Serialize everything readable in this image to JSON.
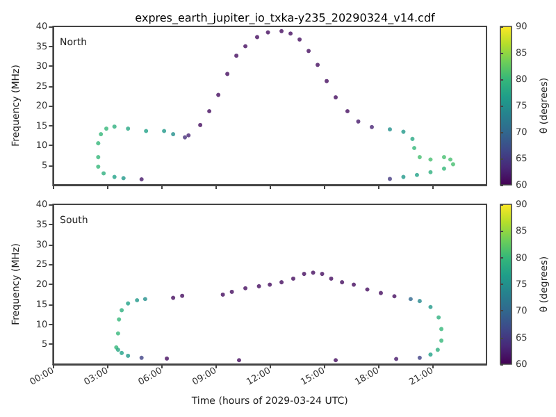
{
  "chart_data": [
    {
      "type": "scatter",
      "title": "expres_earth_jupiter_io_txka-y235_20290324_v14.cdf",
      "ylabel": "Frequency (MHz)",
      "clabel": "θ (degrees)",
      "annotations": [
        "North"
      ],
      "marker": "circle",
      "tick_labels": "y",
      "x": [
        4.9,
        3.9,
        3.4,
        2.8,
        2.5,
        2.5,
        2.5,
        2.65,
        2.95,
        3.4,
        4.15,
        5.15,
        6.15,
        6.65,
        7.3,
        7.5,
        8.15,
        8.65,
        9.15,
        9.65,
        10.15,
        10.65,
        11.3,
        11.9,
        12.65,
        13.15,
        13.65,
        14.15,
        14.65,
        15.15,
        15.65,
        16.3,
        16.9,
        17.65,
        18.65,
        19.4,
        19.9,
        20.0,
        20.3,
        20.9,
        21.65,
        22.0,
        22.15,
        21.65,
        20.9,
        20.15,
        19.4,
        18.65
      ],
      "values": [
        1.4,
        1.7,
        2.0,
        2.9,
        4.6,
        7.0,
        10.5,
        12.8,
        14.2,
        14.7,
        14.2,
        13.6,
        13.6,
        12.8,
        12.0,
        12.5,
        15.1,
        18.6,
        22.7,
        28,
        32.6,
        35,
        37.3,
        38.5,
        38.8,
        38.2,
        36.7,
        33.8,
        30.3,
        26.2,
        22.1,
        18.6,
        16,
        14.6,
        14.0,
        13.4,
        11.6,
        9.3,
        7.0,
        6.4,
        7.0,
        6.4,
        5.2,
        4.1,
        3.2,
        2.5,
        2.0,
        1.5
      ],
      "cvalues": [
        62,
        76,
        77,
        79,
        80,
        80,
        80,
        80,
        80,
        79,
        78,
        77,
        76,
        75,
        64,
        63,
        61,
        61,
        61,
        61,
        61,
        61,
        61,
        61,
        61,
        61,
        61,
        61,
        61,
        61,
        61,
        61,
        62,
        63,
        75,
        76,
        78,
        80,
        81,
        81,
        81,
        81,
        81,
        80,
        79,
        77,
        76,
        65
      ],
      "xlim": [
        0,
        24
      ],
      "xticks": [
        {
          "value": 0,
          "label": null
        },
        {
          "value": 3,
          "label": null
        },
        {
          "value": 6,
          "label": null
        },
        {
          "value": 9,
          "label": null
        },
        {
          "value": 12,
          "label": null
        },
        {
          "value": 15,
          "label": null
        },
        {
          "value": 18,
          "label": null
        },
        {
          "value": 21,
          "label": null
        }
      ],
      "ylim": [
        0,
        40
      ],
      "yticks": [
        5,
        10,
        15,
        20,
        25,
        30,
        35,
        40
      ],
      "clim": [
        60,
        90
      ],
      "cticks": [
        60,
        65,
        70,
        75,
        80,
        85,
        90
      ]
    },
    {
      "type": "scatter",
      "xlabel": "Time (hours of 2029-03-24 UTC)",
      "ylabel": "Frequency (MHz)",
      "clabel": "θ (degrees)",
      "annotations": [
        "South"
      ],
      "marker": "circle",
      "x": [
        3.5,
        3.6,
        3.65,
        3.8,
        4.15,
        4.65,
        5.1,
        4.9,
        4.15,
        3.8,
        3.6,
        6.3,
        6.65,
        7.15,
        9.4,
        9.9,
        10.65,
        11.4,
        12.0,
        12.65,
        13.3,
        13.9,
        14.4,
        14.9,
        15.4,
        16.0,
        16.65,
        17.4,
        18.15,
        18.9,
        19.8,
        20.3,
        20.9,
        21.35,
        21.5,
        21.5,
        21.3,
        20.9,
        20.3,
        19.0,
        15.65,
        10.3
      ],
      "values": [
        4.2,
        7.7,
        11.2,
        13.5,
        15.2,
        16.0,
        16.3,
        1.6,
        2.1,
        2.8,
        3.6,
        1.4,
        16.6,
        17.1,
        17.4,
        18.1,
        19.0,
        19.5,
        19.9,
        20.5,
        21.4,
        22.6,
        22.9,
        22.6,
        21.4,
        20.5,
        19.9,
        18.7,
        17.8,
        17.0,
        16.3,
        15.8,
        14.3,
        11.7,
        8.8,
        5.9,
        3.6,
        2.4,
        1.6,
        1.3,
        1.0,
        1.0
      ],
      "cvalues": [
        80,
        80,
        80,
        79,
        77,
        76,
        75,
        66,
        76,
        77,
        78,
        61,
        61,
        61,
        61,
        61,
        61,
        61,
        61,
        61,
        61,
        61,
        61,
        61,
        61,
        61,
        61,
        61,
        61,
        61,
        70,
        74,
        76,
        79,
        80,
        80,
        79,
        77,
        66,
        62,
        61,
        61
      ],
      "xlim": [
        0,
        24
      ],
      "xticks": [
        {
          "value": 0,
          "label": "00:00"
        },
        {
          "value": 3,
          "label": "03:00"
        },
        {
          "value": 6,
          "label": "06:00"
        },
        {
          "value": 9,
          "label": "09:00"
        },
        {
          "value": 12,
          "label": "12:00"
        },
        {
          "value": 15,
          "label": "15:00"
        },
        {
          "value": 18,
          "label": "18:00"
        },
        {
          "value": 21,
          "label": "21:00"
        }
      ],
      "ylim": [
        0,
        40
      ],
      "yticks": [
        5,
        10,
        15,
        20,
        25,
        30,
        35,
        40
      ],
      "clim": [
        60,
        90
      ],
      "cticks": [
        60,
        65,
        70,
        75,
        80,
        85,
        90
      ]
    }
  ]
}
